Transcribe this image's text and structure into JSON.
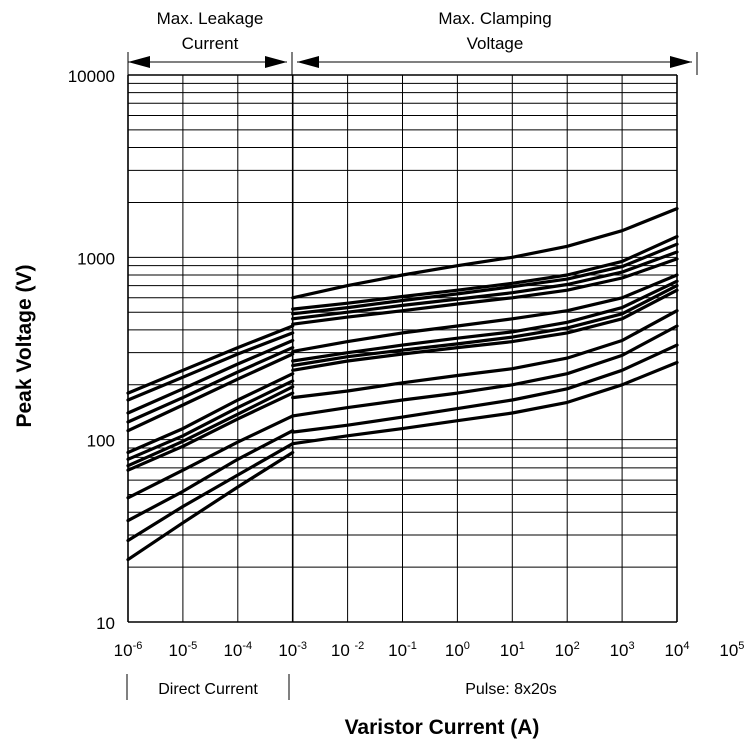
{
  "chart_data": {
    "type": "line",
    "title": "",
    "xlabel": "Varistor Current (A)",
    "ylabel": "Peak Voltage (V)",
    "x_scale": "log",
    "y_scale": "log",
    "xlim": [
      1e-06,
      100000.0
    ],
    "ylim": [
      10,
      10000
    ],
    "grid": true,
    "x_ticks": [
      {
        "base": "10",
        "exp": "-6"
      },
      {
        "base": "10",
        "exp": "-5"
      },
      {
        "base": "10",
        "exp": "-4"
      },
      {
        "base": "10",
        "exp": "-3"
      },
      {
        "base": "10 ",
        "exp": "-2"
      },
      {
        "base": "10",
        "exp": "-1"
      },
      {
        "base": "10",
        "exp": "0"
      },
      {
        "base": "10",
        "exp": "1"
      },
      {
        "base": "10",
        "exp": "2"
      },
      {
        "base": "10",
        "exp": "3"
      },
      {
        "base": "10",
        "exp": "4"
      },
      {
        "base": "10",
        "exp": "5"
      }
    ],
    "y_ticks": [
      "10",
      "100",
      "1000",
      "10000"
    ],
    "annotations": {
      "leakage_line1": "Max. Leakage",
      "leakage_line2": "Current",
      "clamping_line1": "Max. Clamping",
      "clamping_line2": "Voltage",
      "direct_current": "Direct Current",
      "pulse": "Pulse: 8x20s"
    },
    "leakage_series": [
      {
        "x": [
          1e-06,
          1e-05,
          0.0001,
          0.001
        ],
        "y": [
          180,
          240,
          320,
          420
        ]
      },
      {
        "x": [
          1e-06,
          1e-05,
          0.0001,
          0.001
        ],
        "y": [
          165,
          220,
          295,
          385
        ]
      },
      {
        "x": [
          1e-06,
          1e-05,
          0.0001,
          0.001
        ],
        "y": [
          140,
          190,
          260,
          350
        ]
      },
      {
        "x": [
          1e-06,
          1e-05,
          0.0001,
          0.001
        ],
        "y": [
          125,
          170,
          235,
          320
        ]
      },
      {
        "x": [
          1e-06,
          1e-05,
          0.0001,
          0.001
        ],
        "y": [
          112,
          155,
          215,
          295
        ]
      },
      {
        "x": [
          1e-06,
          1e-05,
          0.0001,
          0.001
        ],
        "y": [
          85,
          115,
          165,
          230
        ]
      },
      {
        "x": [
          1e-06,
          1e-05,
          0.0001,
          0.001
        ],
        "y": [
          78,
          105,
          150,
          210
        ]
      },
      {
        "x": [
          1e-06,
          1e-05,
          0.0001,
          0.001
        ],
        "y": [
          72,
          98,
          138,
          195
        ]
      },
      {
        "x": [
          1e-06,
          1e-05,
          0.0001,
          0.001
        ],
        "y": [
          68,
          92,
          130,
          180
        ]
      },
      {
        "x": [
          1e-06,
          1e-05,
          0.0001,
          0.001
        ],
        "y": [
          48,
          68,
          97,
          135
        ]
      },
      {
        "x": [
          1e-06,
          1e-05,
          0.0001,
          0.001
        ],
        "y": [
          36,
          52,
          78,
          112
        ]
      },
      {
        "x": [
          1e-06,
          1e-05,
          0.0001,
          0.001
        ],
        "y": [
          28,
          43,
          64,
          95
        ]
      },
      {
        "x": [
          1e-06,
          1e-05,
          0.0001,
          0.001
        ],
        "y": [
          22,
          35,
          55,
          85
        ]
      }
    ],
    "clamping_series": [
      {
        "x": [
          0.001,
          0.01,
          0.1,
          1,
          10,
          100,
          1000,
          10000
        ],
        "y": [
          600,
          700,
          800,
          900,
          1000,
          1150,
          1400,
          1850
        ]
      },
      {
        "x": [
          0.001,
          0.01,
          0.1,
          1,
          10,
          100,
          1000,
          10000
        ],
        "y": [
          520,
          560,
          610,
          660,
          720,
          800,
          950,
          1300
        ]
      },
      {
        "x": [
          0.001,
          0.01,
          0.1,
          1,
          10,
          100,
          1000,
          10000
        ],
        "y": [
          490,
          530,
          580,
          630,
          690,
          760,
          890,
          1180
        ]
      },
      {
        "x": [
          0.001,
          0.01,
          0.1,
          1,
          10,
          100,
          1000,
          10000
        ],
        "y": [
          460,
          500,
          545,
          590,
          640,
          710,
          830,
          1070
        ]
      },
      {
        "x": [
          0.001,
          0.01,
          0.1,
          1,
          10,
          100,
          1000,
          10000
        ],
        "y": [
          430,
          470,
          510,
          555,
          600,
          660,
          770,
          980
        ]
      },
      {
        "x": [
          0.001,
          0.01,
          0.1,
          1,
          10,
          100,
          1000,
          10000
        ],
        "y": [
          305,
          345,
          385,
          420,
          460,
          510,
          600,
          800
        ]
      },
      {
        "x": [
          0.001,
          0.01,
          0.1,
          1,
          10,
          100,
          1000,
          10000
        ],
        "y": [
          270,
          300,
          330,
          360,
          390,
          440,
          530,
          740
        ]
      },
      {
        "x": [
          0.001,
          0.01,
          0.1,
          1,
          10,
          100,
          1000,
          10000
        ],
        "y": [
          255,
          285,
          310,
          335,
          365,
          410,
          490,
          700
        ]
      },
      {
        "x": [
          0.001,
          0.01,
          0.1,
          1,
          10,
          100,
          1000,
          10000
        ],
        "y": [
          240,
          270,
          295,
          320,
          345,
          385,
          460,
          660
        ]
      },
      {
        "x": [
          0.001,
          0.01,
          0.1,
          1,
          10,
          100,
          1000,
          10000
        ],
        "y": [
          170,
          185,
          205,
          225,
          245,
          280,
          350,
          510
        ]
      },
      {
        "x": [
          0.001,
          0.01,
          0.1,
          1,
          10,
          100,
          1000,
          10000
        ],
        "y": [
          135,
          150,
          165,
          180,
          200,
          230,
          290,
          420
        ]
      },
      {
        "x": [
          0.001,
          0.01,
          0.1,
          1,
          10,
          100,
          1000,
          10000
        ],
        "y": [
          110,
          120,
          133,
          148,
          165,
          190,
          240,
          330
        ]
      },
      {
        "x": [
          0.001,
          0.01,
          0.1,
          1,
          10,
          100,
          1000,
          10000
        ],
        "y": [
          95,
          105,
          115,
          127,
          140,
          160,
          200,
          265
        ]
      }
    ]
  }
}
